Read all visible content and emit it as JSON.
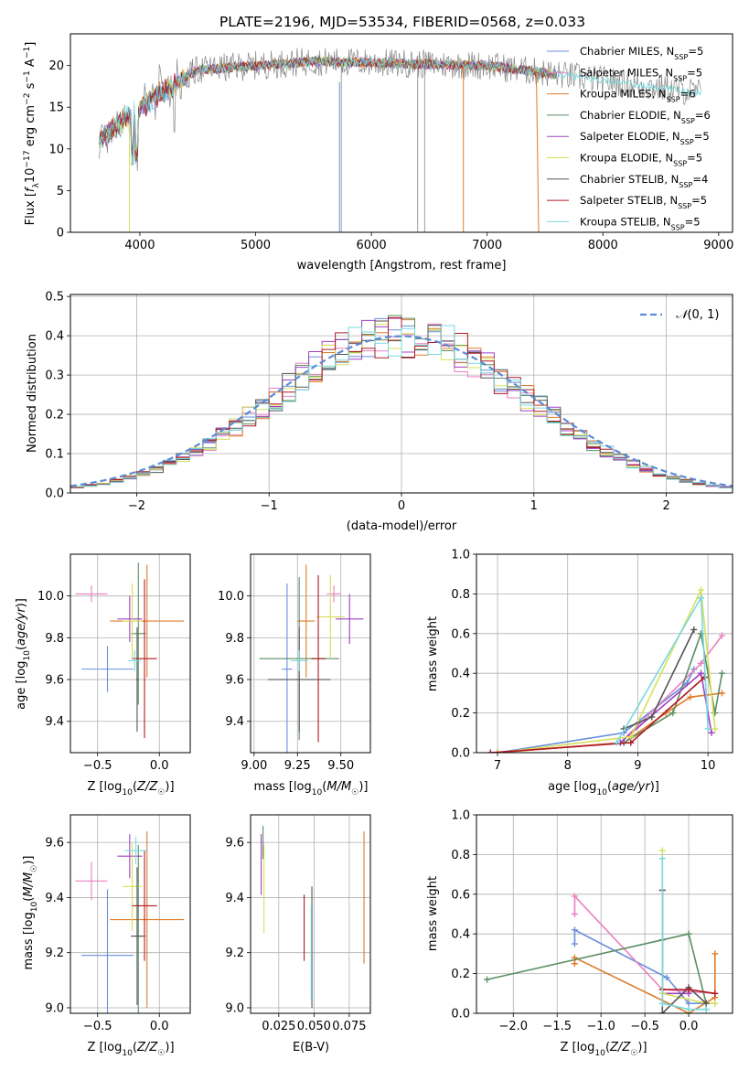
{
  "figure_title": "PLATE=2196, MJD=53534, FIBERID=0568, z=0.033",
  "colors": {
    "cm": "#6a8fdc",
    "sm": "#e980c0",
    "km": "#e07b28",
    "ce": "#5b8e64",
    "se": "#a040c0",
    "ke": "#d6e05a",
    "cs": "#555555",
    "ss": "#b01a22",
    "ks": "#78d8de",
    "gray": "#888888",
    "normal": "#5b8bd6"
  },
  "chart_data": [
    {
      "type": "line",
      "xlabel": "wavelength [Angstrom, rest frame]",
      "ylabel": "Flux [fλ10⁻¹⁷ erg cm⁻² s⁻¹ A⁻¹]",
      "xlim": [
        3400,
        9120
      ],
      "ylim": [
        0,
        23.8
      ],
      "xticks": [
        4000,
        5000,
        6000,
        7000,
        8000,
        9000
      ],
      "yticks": [
        0,
        5,
        10,
        15,
        20
      ],
      "grid": false,
      "legend_position": "upper right",
      "x_range_data": [
        3650,
        8850
      ],
      "series": [
        {
          "key": "cm",
          "name": "Chabrier MILES, N",
          "sub": "SSP",
          "suffix": "=5",
          "color": "#6a8fdc"
        },
        {
          "key": "sm",
          "name": "Salpeter MILES, N",
          "sub": "SSP",
          "suffix": "=5",
          "color": "#e980c0"
        },
        {
          "key": "km",
          "name": "Kroupa MILES, N",
          "sub": "SSP",
          "suffix": "=6",
          "color": "#e07b28"
        },
        {
          "key": "ce",
          "name": "Chabrier ELODIE, N",
          "sub": "SSP",
          "suffix": "=6",
          "color": "#5b8e64"
        },
        {
          "key": "se",
          "name": "Salpeter ELODIE, N",
          "sub": "SSP",
          "suffix": "=5",
          "color": "#a040c0"
        },
        {
          "key": "ke",
          "name": "Kroupa ELODIE, N",
          "sub": "SSP",
          "suffix": "=5",
          "color": "#d6e05a"
        },
        {
          "key": "cs",
          "name": "Chabrier STELIB, N",
          "sub": "SSP",
          "suffix": "=4",
          "color": "#555555"
        },
        {
          "key": "ss",
          "name": "Salpeter STELIB, N",
          "sub": "SSP",
          "suffix": "=5",
          "color": "#b01a22"
        },
        {
          "key": "ks",
          "name": "Kroupa STELIB, N",
          "sub": "SSP",
          "suffix": "=5",
          "color": "#78d8de"
        }
      ]
    },
    {
      "type": "step_histogram",
      "xlabel": "(data-model)/error",
      "ylabel": "Normed distribution",
      "xlim": [
        -2.5,
        2.5
      ],
      "ylim": [
        0,
        0.505
      ],
      "xticks": [
        -2,
        -1,
        0,
        1,
        2
      ],
      "yticks": [
        0.0,
        0.1,
        0.2,
        0.3,
        0.4,
        0.5
      ],
      "grid": true,
      "legend_position": "upper right",
      "legend": "N(0,1)",
      "bin_width": 0.1
    },
    {
      "type": "errorbar",
      "xlabel": "Z [log10(Z/Z☉)]",
      "ylabel": "age [log10(age/yr)]",
      "xlim": [
        -0.72,
        0.25
      ],
      "ylim": [
        9.25,
        10.2
      ],
      "xticks": [
        -0.5,
        0.0
      ],
      "yticks": [
        9.4,
        9.6,
        9.8,
        10.0
      ],
      "points": [
        {
          "c": "cm",
          "x": -0.42,
          "y": 9.65,
          "xe": 0.21,
          "ye": 0.11
        },
        {
          "c": "sm",
          "x": -0.55,
          "y": 10.01,
          "xe": 0.13,
          "ye": 0.04
        },
        {
          "c": "km",
          "x": -0.1,
          "y": 9.88,
          "xe": 0.3,
          "ye": 0.27
        },
        {
          "c": "ce",
          "x": -0.17,
          "y": 9.82,
          "xe": 0.06,
          "ye": 0.34
        },
        {
          "c": "se",
          "x": -0.24,
          "y": 9.89,
          "xe": 0.1,
          "ye": 0.11
        },
        {
          "c": "ke",
          "x": -0.22,
          "y": 9.88,
          "xe": 0.08,
          "ye": 0.18
        },
        {
          "c": "cs",
          "x": -0.18,
          "y": 9.6,
          "xe": 0.01,
          "ye": 0.25
        },
        {
          "c": "ss",
          "x": -0.12,
          "y": 9.7,
          "xe": 0.1,
          "ye": 0.38
        },
        {
          "c": "ks",
          "x": -0.2,
          "y": 9.69,
          "xe": 0.05,
          "ye": 0.05
        }
      ]
    },
    {
      "type": "errorbar",
      "xlabel": "mass [log10(M/M☉)]",
      "xlim": [
        8.98,
        9.67
      ],
      "ylim": [
        9.25,
        10.2
      ],
      "xticks": [
        9.0,
        9.25,
        9.5
      ],
      "yticks": [
        9.4,
        9.6,
        9.8,
        10.0
      ],
      "points": [
        {
          "c": "cm",
          "x": 9.19,
          "y": 9.65,
          "xe": 0.03,
          "ye": 0.41
        },
        {
          "c": "sm",
          "x": 9.46,
          "y": 10.01,
          "xe": 0.04,
          "ye": 0.04
        },
        {
          "c": "km",
          "x": 9.3,
          "y": 9.88,
          "xe": 0.05,
          "ye": 0.27
        },
        {
          "c": "ce",
          "x": 9.26,
          "y": 9.7,
          "xe": 0.23,
          "ye": 0.39
        },
        {
          "c": "se",
          "x": 9.55,
          "y": 9.89,
          "xe": 0.08,
          "ye": 0.12
        },
        {
          "c": "ke",
          "x": 9.44,
          "y": 9.9,
          "xe": 0.08,
          "ye": 0.2
        },
        {
          "c": "cs",
          "x": 9.26,
          "y": 9.6,
          "xe": 0.18,
          "ye": 0.25
        },
        {
          "c": "ss",
          "x": 9.37,
          "y": 9.7,
          "xe": 0.04,
          "ye": 0.4
        },
        {
          "c": "ks",
          "x": 9.26,
          "y": 9.69,
          "xe": 0.05,
          "ye": 0.05
        }
      ]
    },
    {
      "type": "line",
      "xlabel": "age [log10(age/yr)]",
      "ylabel": "mass weight",
      "xlim": [
        6.7,
        10.35
      ],
      "ylim": [
        0,
        1.0
      ],
      "xticks": [
        7,
        8,
        9,
        10
      ],
      "yticks": [
        0.0,
        0.2,
        0.4,
        0.6,
        0.8,
        1.0
      ],
      "grid": true,
      "series": [
        {
          "c": "cm",
          "x": [
            7.0,
            8.8,
            9.7,
            9.8
          ],
          "y": [
            0.0,
            0.1,
            0.35,
            0.42
          ]
        },
        {
          "c": "sm",
          "x": [
            7.0,
            8.75,
            9.9,
            10.2
          ],
          "y": [
            0.0,
            0.05,
            0.45,
            0.59
          ]
        },
        {
          "c": "km",
          "x": [
            7.0,
            8.8,
            9.4,
            9.75,
            10.2
          ],
          "y": [
            0.0,
            0.05,
            0.2,
            0.28,
            0.3
          ]
        },
        {
          "c": "ce",
          "x": [
            8.8,
            9.5,
            9.9,
            10.1,
            10.2
          ],
          "y": [
            0.05,
            0.2,
            0.6,
            0.2,
            0.4
          ]
        },
        {
          "c": "se",
          "x": [
            8.75,
            9.9,
            10.05
          ],
          "y": [
            0.05,
            0.4,
            0.1
          ]
        },
        {
          "c": "ke",
          "x": [
            7.0,
            8.9,
            9.9,
            10.1
          ],
          "y": [
            0.0,
            0.08,
            0.82,
            0.12
          ]
        },
        {
          "c": "cs",
          "x": [
            8.8,
            9.2,
            9.8
          ],
          "y": [
            0.12,
            0.18,
            0.62
          ]
        },
        {
          "c": "ss",
          "x": [
            6.9,
            8.9,
            9.95
          ],
          "y": [
            0.0,
            0.05,
            0.38
          ]
        },
        {
          "c": "ks",
          "x": [
            8.7,
            9.9,
            10.0
          ],
          "y": [
            0.05,
            0.78,
            0.12
          ]
        }
      ]
    },
    {
      "type": "errorbar",
      "xlabel": "Z [log10(Z/Z☉)]",
      "ylabel": "mass [log10(M/M☉)]",
      "xlim": [
        -0.72,
        0.25
      ],
      "ylim": [
        8.98,
        9.7
      ],
      "xticks": [
        -0.5,
        0.0
      ],
      "yticks": [
        9.0,
        9.2,
        9.4,
        9.6
      ],
      "points": [
        {
          "c": "cm",
          "x": -0.42,
          "y": 9.19,
          "xe": 0.21,
          "ye": 0.24
        },
        {
          "c": "sm",
          "x": -0.55,
          "y": 9.46,
          "xe": 0.13,
          "ye": 0.07
        },
        {
          "c": "km",
          "x": -0.1,
          "y": 9.32,
          "xe": 0.3,
          "ye": 0.32
        },
        {
          "c": "ce",
          "x": -0.17,
          "y": 9.26,
          "xe": 0.06,
          "ye": 0.33
        },
        {
          "c": "se",
          "x": -0.24,
          "y": 9.55,
          "xe": 0.1,
          "ye": 0.08
        },
        {
          "c": "ke",
          "x": -0.22,
          "y": 9.44,
          "xe": 0.08,
          "ye": 0.16
        },
        {
          "c": "cs",
          "x": -0.18,
          "y": 9.26,
          "xe": 0.05,
          "ye": 0.25
        },
        {
          "c": "ss",
          "x": -0.12,
          "y": 9.37,
          "xe": 0.1,
          "ye": 0.2
        },
        {
          "c": "ks",
          "x": -0.19,
          "y": 9.57,
          "xe": 0.09,
          "ye": 0.05
        }
      ]
    },
    {
      "type": "errorbar",
      "xlabel": "E(B-V)",
      "xlim": [
        0.005,
        0.09
      ],
      "ylim": [
        8.98,
        9.7
      ],
      "xticks": [
        0.025,
        0.05,
        0.075
      ],
      "xticklabels": [
        "0.025",
        "0.050",
        "0.075"
      ],
      "yticks": [
        9.0,
        9.2,
        9.4,
        9.6
      ],
      "points": [
        {
          "c": "se",
          "x": 0.0125,
          "y": 9.52,
          "ye": 0.11
        },
        {
          "c": "ke",
          "x": 0.0145,
          "y": 9.43,
          "ye": 0.16
        },
        {
          "c": "ce",
          "x": 0.0138,
          "y": 9.6,
          "ye": 0.06
        },
        {
          "c": "ss",
          "x": 0.043,
          "y": 9.29,
          "ye": 0.12
        },
        {
          "c": "cs",
          "x": 0.0485,
          "y": 9.22,
          "ye": 0.22
        },
        {
          "c": "ks",
          "x": 0.048,
          "y": 9.2,
          "ye": 0.17
        },
        {
          "c": "km",
          "x": 0.0855,
          "y": 9.4,
          "ye": 0.24
        }
      ]
    },
    {
      "type": "line",
      "xlabel": "Z [log10(Z/Z☉)]",
      "ylabel": "mass weight",
      "xlim": [
        -2.42,
        0.5
      ],
      "ylim": [
        0,
        1.0
      ],
      "xticks": [
        -2.0,
        -1.5,
        -1.0,
        -0.5,
        0.0
      ],
      "yticks": [
        0.0,
        0.2,
        0.4,
        0.6,
        0.8,
        1.0
      ],
      "grid": true,
      "series": [
        {
          "c": "cm",
          "x": [
            -1.3,
            -1.3,
            -0.25,
            0.0,
            0.3
          ],
          "y": [
            0.35,
            0.42,
            0.18,
            0.05,
            0.05
          ]
        },
        {
          "c": "sm",
          "x": [
            -1.3,
            -1.3,
            -0.3,
            0.3
          ],
          "y": [
            0.5,
            0.59,
            0.12,
            0.1
          ]
        },
        {
          "c": "km",
          "x": [
            -1.3,
            -1.3,
            0.0,
            0.3,
            0.3
          ],
          "y": [
            0.25,
            0.28,
            0.0,
            0.08,
            0.3
          ]
        },
        {
          "c": "ce",
          "x": [
            -2.3,
            -0.3,
            0.0,
            0.2,
            0.2
          ],
          "y": [
            0.17,
            0.37,
            0.4,
            0.05,
            0.02
          ]
        },
        {
          "c": "se",
          "x": [
            -0.3,
            -0.3,
            0.0
          ],
          "y": [
            0.62,
            0.1,
            0.1
          ]
        },
        {
          "c": "ke",
          "x": [
            -0.3,
            -0.3,
            0.2,
            0.3
          ],
          "y": [
            0.82,
            0.1,
            0.05,
            0.05
          ]
        },
        {
          "c": "cs",
          "x": [
            -0.3,
            -0.3,
            0.0,
            0.2
          ],
          "y": [
            0.62,
            0.0,
            0.13,
            0.05
          ]
        },
        {
          "c": "ss",
          "x": [
            -0.3,
            0.0,
            0.3
          ],
          "y": [
            0.12,
            0.12,
            0.1
          ]
        },
        {
          "c": "ks",
          "x": [
            -0.3,
            -0.3,
            0.0,
            0.2
          ],
          "y": [
            0.78,
            0.05,
            0.02,
            0.02
          ]
        }
      ]
    }
  ]
}
